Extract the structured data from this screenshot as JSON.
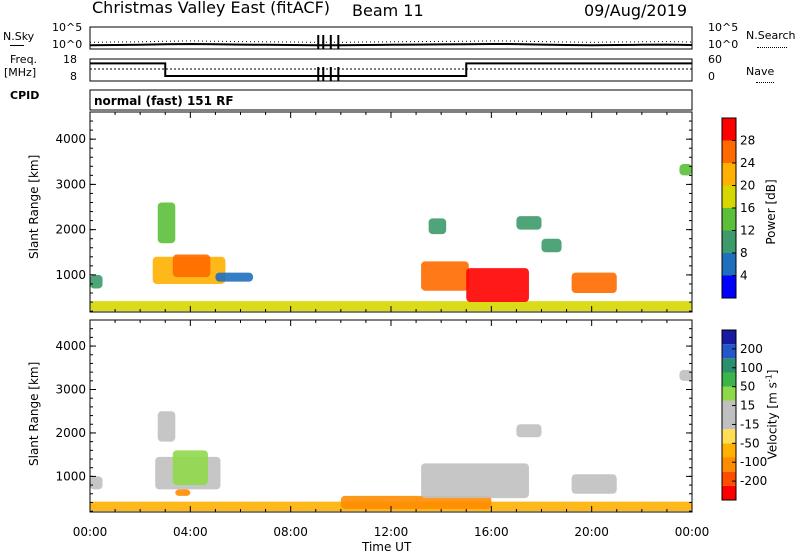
{
  "header": {
    "station": "Christmas Valley East (fitACF)",
    "beam": "Beam 11",
    "date": "09/Aug/2019"
  },
  "top_panels": {
    "nsky_label": "N.Sky",
    "nsky_tick_top": "10^5",
    "nsky_tick_bottom": "10^0",
    "nsearch_label": "N.Search",
    "nsearch_tick_top": "10^5",
    "nsearch_tick_bottom": "10^0",
    "freq_label_1": "Freq.",
    "freq_label_2": "[MHz]",
    "freq_tick_top": "18",
    "freq_tick_bottom": "8",
    "nave_label": "Nave",
    "nave_tick_top": "60",
    "nave_tick_bottom": "0",
    "cpid_label": "CPID",
    "cpid_value": "normal (fast) 151 RF"
  },
  "colors": {
    "power_scale": [
      "#0000ff",
      "#1f6fbf",
      "#3d9a6a",
      "#5cbf3a",
      "#d7d700",
      "#ffb000",
      "#ff6a00",
      "#ff0000"
    ],
    "velocity_scale": [
      "#ff0000",
      "#ff4d00",
      "#ff8c00",
      "#ffb000",
      "#ffdd55",
      "#c0c0c0",
      "#c0c0c0",
      "#8fd84a",
      "#3cb44a",
      "#2a8f6f",
      "#2458c9",
      "#1a1aa0"
    ],
    "ground_scatter": "#c0c0c0"
  },
  "chart_data": [
    {
      "type": "line",
      "panel": "noise",
      "title": "N.Sky / N.Search",
      "ylabel": "N.Sky",
      "yscale": "log",
      "ylim": [
        1,
        100000
      ],
      "x": [
        0,
        1,
        2,
        3,
        4,
        5,
        6,
        7,
        8,
        9,
        10,
        11,
        12,
        13,
        14,
        15,
        16,
        17,
        18,
        19,
        20,
        21,
        22,
        23,
        24
      ],
      "series": [
        {
          "name": "N.Sky",
          "values": [
            7,
            8,
            9,
            12,
            14,
            12,
            10,
            9,
            8,
            7,
            7,
            8,
            9,
            10,
            11,
            12,
            14,
            13,
            10,
            8,
            7,
            8,
            9,
            10,
            8
          ]
        }
      ]
    },
    {
      "type": "line",
      "panel": "frequency",
      "ylabel": "Freq. [MHz]",
      "ylim": [
        8,
        18
      ],
      "x": [
        0,
        3,
        3,
        15,
        15,
        24
      ],
      "series": [
        {
          "name": "Freq.",
          "values": [
            16,
            16,
            10.3,
            10.3,
            16,
            16
          ]
        }
      ]
    },
    {
      "type": "heatmap",
      "panel": "power",
      "xlabel": "Time UT",
      "ylabel": "Slant Range [km]",
      "colorbar_label": "Power [dB]",
      "colorbar_ticks": [
        4,
        8,
        12,
        16,
        20,
        24,
        28
      ],
      "clim": [
        0,
        32
      ],
      "xlim": [
        0,
        24
      ],
      "ylim": [
        180,
        4600
      ],
      "x_ticks": [
        "00:00",
        "04:00",
        "08:00",
        "12:00",
        "16:00",
        "20:00",
        "00:00"
      ],
      "y_ticks": [
        1000,
        2000,
        3000,
        4000
      ],
      "regions": [
        {
          "t0": 0.0,
          "t1": 24.0,
          "r0": 200,
          "r1": 420,
          "value": 18
        },
        {
          "t0": 2.5,
          "t1": 5.4,
          "r0": 800,
          "r1": 1400,
          "value": 22
        },
        {
          "t0": 3.3,
          "t1": 4.8,
          "r0": 950,
          "r1": 1450,
          "value": 27
        },
        {
          "t0": 5.0,
          "t1": 6.5,
          "r0": 850,
          "r1": 1050,
          "value": 6
        },
        {
          "t0": 2.7,
          "t1": 3.4,
          "r0": 1700,
          "r1": 2600,
          "value": 12
        },
        {
          "t0": 0.0,
          "t1": 0.5,
          "r0": 700,
          "r1": 1000,
          "value": 8
        },
        {
          "t0": 13.2,
          "t1": 15.1,
          "r0": 650,
          "r1": 1300,
          "value": 24
        },
        {
          "t0": 15.0,
          "t1": 17.5,
          "r0": 400,
          "r1": 1150,
          "value": 28
        },
        {
          "t0": 13.5,
          "t1": 14.2,
          "r0": 1900,
          "r1": 2250,
          "value": 8
        },
        {
          "t0": 17.0,
          "t1": 18.0,
          "r0": 2000,
          "r1": 2300,
          "value": 10
        },
        {
          "t0": 18.0,
          "t1": 18.8,
          "r0": 1500,
          "r1": 1800,
          "value": 8
        },
        {
          "t0": 19.2,
          "t1": 21.0,
          "r0": 600,
          "r1": 1050,
          "value": 24
        },
        {
          "t0": 23.5,
          "t1": 24.0,
          "r0": 3200,
          "r1": 3450,
          "value": 12
        }
      ]
    },
    {
      "type": "heatmap",
      "panel": "velocity",
      "xlabel": "Time UT",
      "ylabel": "Slant Range [km]",
      "colorbar_label": "Velocity [m s^-1]",
      "colorbar_ticks": [
        -200,
        -100,
        -50,
        -15,
        15,
        50,
        100,
        200
      ],
      "clim": [
        -250,
        250
      ],
      "xlim": [
        0,
        24
      ],
      "ylim": [
        180,
        4600
      ],
      "x_ticks": [
        "00:00",
        "04:00",
        "08:00",
        "12:00",
        "16:00",
        "20:00",
        "00:00"
      ],
      "y_ticks": [
        1000,
        2000,
        3000,
        4000
      ],
      "regions": [
        {
          "t0": 0.0,
          "t1": 24.0,
          "r0": 200,
          "r1": 420,
          "value": -40,
          "ground": false
        },
        {
          "t0": 10.0,
          "t1": 16.0,
          "r0": 250,
          "r1": 550,
          "value": -60,
          "ground": false
        },
        {
          "t0": 2.6,
          "t1": 5.2,
          "r0": 700,
          "r1": 1450,
          "value": 0,
          "ground": true
        },
        {
          "t0": 3.3,
          "t1": 4.7,
          "r0": 800,
          "r1": 1600,
          "value": 30,
          "ground": false
        },
        {
          "t0": 3.4,
          "t1": 4.0,
          "r0": 550,
          "r1": 700,
          "value": -60,
          "ground": false
        },
        {
          "t0": 0.0,
          "t1": 0.5,
          "r0": 700,
          "r1": 1000,
          "value": 0,
          "ground": true
        },
        {
          "t0": 13.2,
          "t1": 17.5,
          "r0": 500,
          "r1": 1300,
          "value": 0,
          "ground": true
        },
        {
          "t0": 19.2,
          "t1": 21.0,
          "r0": 600,
          "r1": 1050,
          "value": 0,
          "ground": true
        },
        {
          "t0": 17.0,
          "t1": 18.0,
          "r0": 1900,
          "r1": 2200,
          "value": 0,
          "ground": true
        },
        {
          "t0": 2.7,
          "t1": 3.4,
          "r0": 1800,
          "r1": 2500,
          "value": 0,
          "ground": true
        },
        {
          "t0": 23.5,
          "t1": 24.0,
          "r0": 3200,
          "r1": 3450,
          "value": 0,
          "ground": true
        }
      ]
    }
  ],
  "axes": {
    "xlabel": "Time UT",
    "ylabel": "Slant Range [km]",
    "power_colorbar_label": "Power [dB]",
    "velocity_colorbar_label": "Velocity [m s",
    "velocity_colorbar_sup": "-1",
    "velocity_colorbar_close": "]"
  }
}
